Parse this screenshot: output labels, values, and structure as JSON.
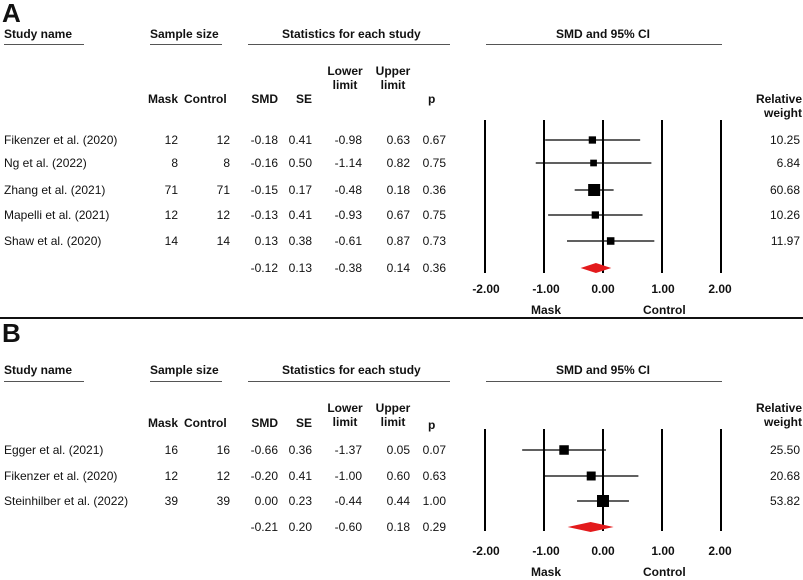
{
  "panels": [
    {
      "label": "A",
      "headers": {
        "study_name": "Study name",
        "sample_size": "Sample size",
        "statistics": "Statistics for each study",
        "effect": "SMD and 95% CI",
        "mask": "Mask",
        "control": "Control",
        "smd": "SMD",
        "se": "SE",
        "lower_1": "Lower",
        "lower_2": "limit",
        "upper_1": "Upper",
        "upper_2": "limit",
        "p": "p",
        "weight_1": "Relative",
        "weight_2": "weight"
      },
      "studies": [
        {
          "name": "Fikenzer et al. (2020)",
          "mask": "12",
          "control": "12",
          "smd": "-0.18",
          "se": "0.41",
          "lower": "-0.98",
          "upper": "0.63",
          "p": "0.67",
          "weight": "10.25"
        },
        {
          "name": "Ng et al. (2022)",
          "mask": "8",
          "control": "8",
          "smd": "-0.16",
          "se": "0.50",
          "lower": "-1.14",
          "upper": "0.82",
          "p": "0.75",
          "weight": "6.84"
        },
        {
          "name": "Zhang et al. (2021)",
          "mask": "71",
          "control": "71",
          "smd": "-0.15",
          "se": "0.17",
          "lower": "-0.48",
          "upper": "0.18",
          "p": "0.36",
          "weight": "60.68"
        },
        {
          "name": "Mapelli et al. (2021)",
          "mask": "12",
          "control": "12",
          "smd": "-0.13",
          "se": "0.41",
          "lower": "-0.93",
          "upper": "0.67",
          "p": "0.75",
          "weight": "10.26"
        },
        {
          "name": "Shaw et al. (2020)",
          "mask": "14",
          "control": "14",
          "smd": "0.13",
          "se": "0.38",
          "lower": "-0.61",
          "upper": "0.87",
          "p": "0.73",
          "weight": "11.97"
        }
      ],
      "overall": {
        "smd": "-0.12",
        "se": "0.13",
        "lower": "-0.38",
        "upper": "0.14",
        "p": "0.36"
      },
      "axis_ticks": [
        "-2.00",
        "-1.00",
        "0.00",
        "1.00",
        "2.00"
      ],
      "favours_left": "Mask",
      "favours_right": "Control"
    },
    {
      "label": "B",
      "headers": {
        "study_name": "Study name",
        "sample_size": "Sample size",
        "statistics": "Statistics for each study",
        "effect": "SMD and 95% CI",
        "mask": "Mask",
        "control": "Control",
        "smd": "SMD",
        "se": "SE",
        "lower_1": "Lower",
        "lower_2": "limit",
        "upper_1": "Upper",
        "upper_2": "limit",
        "p": "p",
        "weight_1": "Relative",
        "weight_2": "weight"
      },
      "studies": [
        {
          "name": "Egger et al. (2021)",
          "mask": "16",
          "control": "16",
          "smd": "-0.66",
          "se": "0.36",
          "lower": "-1.37",
          "upper": "0.05",
          "p": "0.07",
          "weight": "25.50"
        },
        {
          "name": "Fikenzer et al. (2020)",
          "mask": "12",
          "control": "12",
          "smd": "-0.20",
          "se": "0.41",
          "lower": "-1.00",
          "upper": "0.60",
          "p": "0.63",
          "weight": "20.68"
        },
        {
          "name": "Steinhilber et al. (2022)",
          "mask": "39",
          "control": "39",
          "smd": "0.00",
          "se": "0.23",
          "lower": "-0.44",
          "upper": "0.44",
          "p": "1.00",
          "weight": "53.82"
        }
      ],
      "overall": {
        "smd": "-0.21",
        "se": "0.20",
        "lower": "-0.60",
        "upper": "0.18",
        "p": "0.29"
      },
      "axis_ticks": [
        "-2.00",
        "-1.00",
        "0.00",
        "1.00",
        "2.00"
      ],
      "favours_left": "Mask",
      "favours_right": "Control"
    }
  ],
  "chart_data": [
    {
      "type": "forest",
      "title": "A",
      "xlabel": "SMD and 95% CI",
      "xlim": [
        -2,
        2
      ],
      "categories": [
        "Fikenzer et al. (2020)",
        "Ng et al. (2022)",
        "Zhang et al. (2021)",
        "Mapelli et al. (2021)",
        "Shaw et al. (2020)"
      ],
      "smd": [
        -0.18,
        -0.16,
        -0.15,
        -0.13,
        0.13
      ],
      "lower": [
        -0.98,
        -1.14,
        -0.48,
        -0.93,
        -0.61
      ],
      "upper": [
        0.63,
        0.82,
        0.18,
        0.67,
        0.87
      ],
      "weights": [
        10.25,
        6.84,
        60.68,
        10.26,
        11.97
      ],
      "overall": {
        "smd": -0.12,
        "lower": -0.38,
        "upper": 0.14
      },
      "overall_color": "#e31a1c"
    },
    {
      "type": "forest",
      "title": "B",
      "xlabel": "SMD and 95% CI",
      "xlim": [
        -2,
        2
      ],
      "categories": [
        "Egger et al. (2021)",
        "Fikenzer et al. (2020)",
        "Steinhilber et al. (2022)"
      ],
      "smd": [
        -0.66,
        -0.2,
        0.0
      ],
      "lower": [
        -1.37,
        -1.0,
        -0.44
      ],
      "upper": [
        0.05,
        0.6,
        0.44
      ],
      "weights": [
        25.5,
        20.68,
        53.82
      ],
      "overall": {
        "smd": -0.21,
        "lower": -0.6,
        "upper": 0.18
      },
      "overall_color": "#e31a1c"
    }
  ]
}
